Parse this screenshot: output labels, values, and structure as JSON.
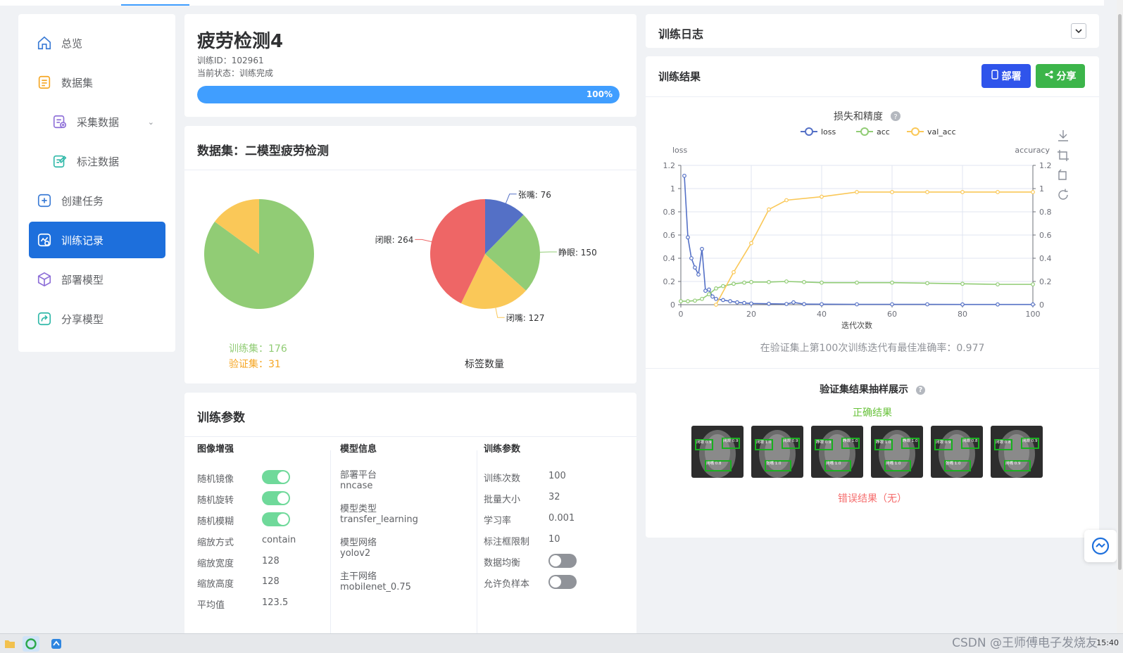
{
  "sidebar": {
    "items": [
      {
        "label": "总览",
        "icon": "home-icon"
      },
      {
        "label": "数据集",
        "icon": "document-icon"
      },
      {
        "label": "采集数据",
        "icon": "collect-data-icon"
      },
      {
        "label": "标注数据",
        "icon": "annotate-icon"
      },
      {
        "label": "创建任务",
        "icon": "plus-square-icon"
      },
      {
        "label": "训练记录",
        "icon": "training-record-icon"
      },
      {
        "label": "部署模型",
        "icon": "cube-icon"
      },
      {
        "label": "分享模型",
        "icon": "share-icon"
      }
    ],
    "active": "训练记录"
  },
  "task": {
    "title": "疲劳检测4",
    "id_line": "训练ID：102961",
    "status_line": "当前状态：训练完成",
    "progress_label": "100%",
    "progress": 1.0
  },
  "dataset": {
    "title": "数据集：二模型疲劳检测",
    "train_label": "训练集：176",
    "val_label": "验证集：31",
    "label_count_caption": "标签数量",
    "split_pie": [
      {
        "name": "训练集",
        "value": 176,
        "color": "#91cc75"
      },
      {
        "name": "验证集",
        "value": 31,
        "color": "#fac858"
      }
    ],
    "label_pie": [
      {
        "name": "张嘴",
        "value": 76,
        "color": "#5470c6",
        "text": "张嘴: 76"
      },
      {
        "name": "睁眼",
        "value": 150,
        "color": "#91cc75",
        "text": "睁眼: 150"
      },
      {
        "name": "闭嘴",
        "value": 127,
        "color": "#fac858",
        "text": "闭嘴: 127"
      },
      {
        "name": "闭眼",
        "value": 264,
        "color": "#ee6666",
        "text": "闭眼: 264"
      }
    ]
  },
  "params": {
    "title": "训练参数",
    "aug": {
      "title": "图像增强",
      "rows": [
        {
          "label": "随机镜像",
          "switch": true
        },
        {
          "label": "随机旋转",
          "switch": true
        },
        {
          "label": "随机模糊",
          "switch": true
        },
        {
          "label": "缩放方式",
          "value": "contain"
        },
        {
          "label": "缩放宽度",
          "value": "128"
        },
        {
          "label": "缩放高度",
          "value": "128"
        },
        {
          "label": "平均值",
          "value": "123.5"
        }
      ]
    },
    "model": {
      "title": "模型信息",
      "rows": [
        {
          "label": "部署平台",
          "value": "nncase"
        },
        {
          "label": "模型类型",
          "value": "transfer_learning"
        },
        {
          "label": "模型网络",
          "value": "yolov2"
        },
        {
          "label": "主干网络",
          "value": "mobilenet_0.75"
        }
      ]
    },
    "train": {
      "title": "训练参数",
      "rows": [
        {
          "label": "训练次数",
          "value": "100"
        },
        {
          "label": "批量大小",
          "value": "32"
        },
        {
          "label": "学习率",
          "value": "0.001"
        },
        {
          "label": "标注框限制",
          "value": "10"
        },
        {
          "label": "数据均衡",
          "switch": false
        },
        {
          "label": "允许负样本",
          "switch": false
        }
      ]
    }
  },
  "log": {
    "title": "训练日志",
    "toggle_icon": "chevron-down-icon"
  },
  "results": {
    "title": "训练结果",
    "deploy_label": "部署",
    "share_label": "分享",
    "deploy_color": "#2f54eb",
    "share_color": "#3cb54a",
    "best_text": "在验证集上第100次训练迭代有最佳准确率：0.977",
    "samples_title": "验证集结果抽样展示",
    "correct_label": "正确结果",
    "wrong_label": "错误结果（无）",
    "samples": [
      {
        "boxes": [
          "闭眼 0.9",
          "闭眼 0.9",
          "闭嘴 0.8"
        ]
      },
      {
        "boxes": [
          "闭眼 1.0",
          "闭眼 0.9",
          "张嘴 1.0"
        ]
      },
      {
        "boxes": [
          "睁眼 0.9",
          "睁眼 1.0",
          "闭嘴 1.0"
        ]
      },
      {
        "boxes": [
          "睁眼 1.0",
          "睁眼 1.0",
          "闭嘴 1.0"
        ]
      },
      {
        "boxes": [
          "闭眼 0.9",
          "闭眼 0.8",
          "张嘴 1.0"
        ]
      },
      {
        "boxes": [
          "闭眼 0.8",
          "闭眼 0.9",
          "闭嘴 0.9"
        ]
      }
    ]
  },
  "chart_data": {
    "type": "line",
    "title": "损失和精度",
    "xlabel": "迭代次数",
    "ylabel_left": "loss",
    "ylabel_right": "accuracy",
    "xlim": [
      0,
      100
    ],
    "ylim": [
      0,
      1.2
    ],
    "x_ticks": [
      0,
      20,
      40,
      60,
      80,
      100
    ],
    "y_ticks": [
      "0",
      "0.2",
      "0.4",
      "0.6",
      "0.8",
      "1",
      "1.2"
    ],
    "legend": "top-center",
    "series": [
      {
        "name": "loss",
        "color": "#5470c6",
        "x": [
          1,
          2,
          3,
          4,
          5,
          6,
          7,
          8,
          9,
          10,
          12,
          14,
          16,
          18,
          20,
          25,
          30,
          32,
          35,
          40,
          50,
          60,
          70,
          80,
          90,
          100
        ],
        "values": [
          1.11,
          0.58,
          0.4,
          0.32,
          0.26,
          0.48,
          0.12,
          0.13,
          0.07,
          0.05,
          0.04,
          0.03,
          0.02,
          0.015,
          0.01,
          0.008,
          0.006,
          0.02,
          0.005,
          0.004,
          0.003,
          0.003,
          0.003,
          0.002,
          0.002,
          0.002
        ]
      },
      {
        "name": "acc",
        "color": "#91cc75",
        "x": [
          0,
          2,
          4,
          6,
          8,
          10,
          12,
          15,
          18,
          20,
          25,
          30,
          35,
          40,
          50,
          60,
          70,
          80,
          90,
          100
        ],
        "values": [
          0.03,
          0.03,
          0.035,
          0.05,
          0.09,
          0.14,
          0.16,
          0.18,
          0.19,
          0.195,
          0.195,
          0.2,
          0.195,
          0.19,
          0.19,
          0.19,
          0.185,
          0.18,
          0.175,
          0.175
        ]
      },
      {
        "name": "val_acc",
        "color": "#fac858",
        "x": [
          10,
          15,
          20,
          25,
          30,
          40,
          50,
          60,
          70,
          80,
          90,
          100
        ],
        "values": [
          0.0,
          0.28,
          0.53,
          0.82,
          0.9,
          0.93,
          0.97,
          0.97,
          0.97,
          0.97,
          0.97,
          0.97
        ]
      }
    ]
  },
  "taskbar": {
    "watermark": "CSDN @王师傅电子发烧友",
    "clock": "15:40"
  }
}
